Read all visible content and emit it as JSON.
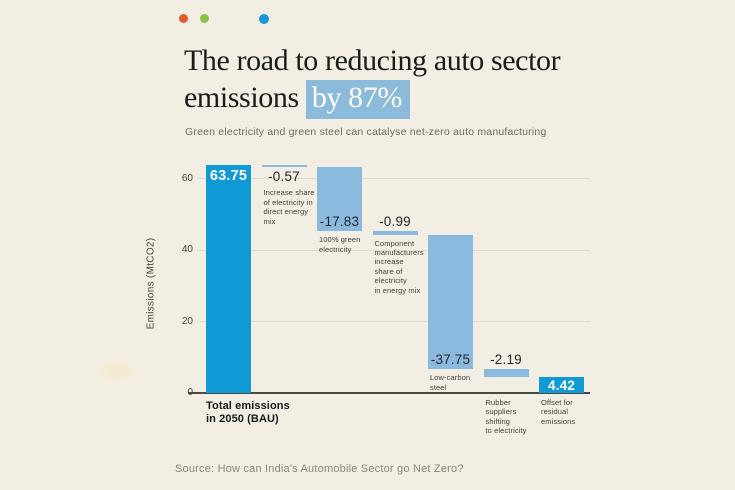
{
  "page": {
    "dots": [
      {
        "name": "orange-dot",
        "color": "#e25a28"
      },
      {
        "name": "green-dot",
        "color": "#8cc04b"
      },
      {
        "name": "blue-dot",
        "color": "#1699d6"
      }
    ],
    "title_line1": "The road to reducing auto sector",
    "title_line2_plain": "emissions ",
    "title_line2_highlight": "by 87%",
    "highlight_bg": "#8cbadb",
    "subtitle": "Green electricity and green steel can catalyse net-zero auto manufacturing",
    "source": "Source: How can India's Automobile Sector go Net Zero?"
  },
  "chart_data": {
    "type": "bar",
    "subtype": "waterfall",
    "title": "The road to reducing auto sector emissions by 87%",
    "ylabel": "Emissions (MtCO2)",
    "ylim": [
      0,
      65
    ],
    "yticks": [
      0,
      20,
      40,
      60
    ],
    "grid": "horizontal",
    "legend": "none",
    "colors": {
      "total": "#0f9ad5",
      "delta": "#8abade",
      "value_text": "#26262a",
      "value_text_inverse": "#ffffff"
    },
    "steps": [
      {
        "label": "Total emissions in 2050 (BAU)",
        "label_lines": [
          "Total emissions",
          "in 2050 (BAU)"
        ],
        "value": 63.75,
        "display": "63.75",
        "kind": "total",
        "value_pos": "inside-top",
        "label_below_axis": true,
        "label_bold": true
      },
      {
        "label": "Increase share of electricity in direct energy mix",
        "label_lines": [
          "Increase share",
          "of electricity in",
          "direct energy",
          "mix"
        ],
        "value": -0.57,
        "display": "-0.57",
        "kind": "delta",
        "value_pos": "below",
        "label_below_axis": false
      },
      {
        "label": "100% green electricity",
        "label_lines": [
          "100% green",
          "electricity"
        ],
        "value": -17.83,
        "display": "-17.83",
        "kind": "delta",
        "value_pos": "inside-bottom",
        "label_below_axis": false
      },
      {
        "label": "Component manufacturers increase share of electricity in energy mix",
        "label_lines": [
          "Component",
          "manufacturers",
          "increase",
          "share of",
          "electricity",
          "in energy mix"
        ],
        "value": -0.99,
        "display": "-0.99",
        "kind": "delta",
        "value_pos": "above",
        "label_below_axis": false
      },
      {
        "label": "Low-carbon steel",
        "label_lines": [
          "Low-carbon",
          "steel"
        ],
        "value": -37.75,
        "display": "-37.75",
        "kind": "delta",
        "value_pos": "inside-bottom",
        "label_below_axis": false
      },
      {
        "label": "Rubber suppliers shifting to electricity",
        "label_lines": [
          "Rubber",
          "suppliers",
          "shifting",
          "to electricity"
        ],
        "value": -2.19,
        "display": "-2.19",
        "kind": "delta",
        "value_pos": "above",
        "label_below_axis": true
      },
      {
        "label": "Offset for residual emissions",
        "label_lines": [
          "Offset for",
          "residual",
          "emissions"
        ],
        "value": 4.42,
        "display": "4.42",
        "kind": "total",
        "value_pos": "inside",
        "label_below_axis": true
      }
    ]
  }
}
